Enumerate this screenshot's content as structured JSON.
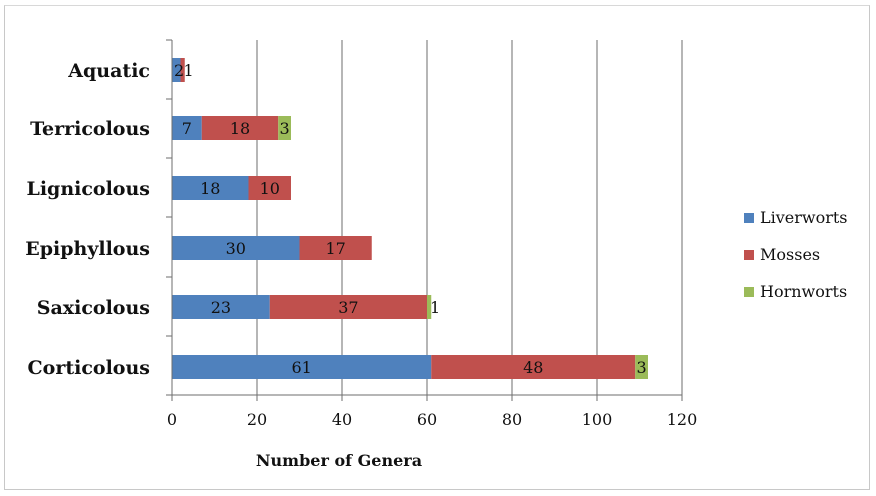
{
  "chart_data": {
    "type": "bar",
    "orientation": "horizontal",
    "stacked": true,
    "categories": [
      "Aquatic",
      "Terricolous",
      "Lignicolous",
      "Epiphyllous",
      "Saxicolous",
      "Corticolous"
    ],
    "series": [
      {
        "name": "Liverworts",
        "color": "#4f81bd",
        "values": [
          2,
          7,
          18,
          30,
          23,
          61
        ]
      },
      {
        "name": "Mosses",
        "color": "#c0504d",
        "values": [
          1,
          18,
          10,
          17,
          37,
          48
        ]
      },
      {
        "name": "Hornworts",
        "color": "#9bbb59",
        "values": [
          0,
          3,
          0,
          0,
          1,
          3
        ]
      }
    ],
    "xlabel": "Number of Genera",
    "ylabel": "",
    "xlim": [
      0,
      120
    ],
    "xticks": [
      0,
      20,
      40,
      60,
      80,
      100,
      120
    ],
    "grid": true,
    "legend_position": "right",
    "data_labels": true
  }
}
